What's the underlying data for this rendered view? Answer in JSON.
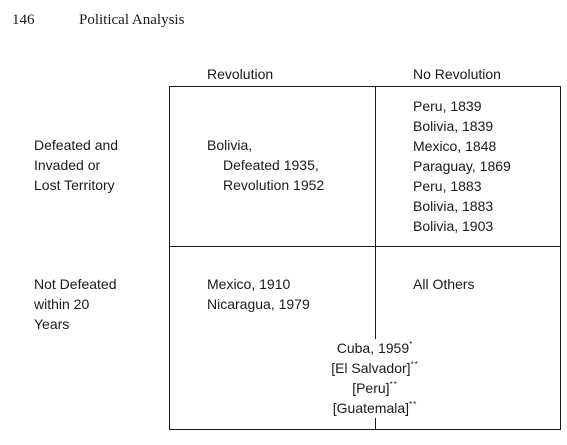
{
  "header": {
    "page_number": "146",
    "running_title": "Political Analysis"
  },
  "table": {
    "col_headers": [
      "Revolution",
      "No Revolution"
    ],
    "row_headers": [
      [
        "Defeated and",
        "Invaded or",
        "Lost Territory"
      ],
      [
        "Not Defeated",
        "within 20",
        "Years"
      ]
    ],
    "cell_defeated_revolution": [
      "Bolivia,",
      "Defeated 1935,",
      "Revolution 1952"
    ],
    "cell_defeated_no_revolution": [
      "Peru, 1839",
      "Bolivia, 1839",
      "Mexico, 1848",
      "Paraguay, 1869",
      "Peru, 1883",
      "Bolivia, 1883",
      "Bolivia, 1903"
    ],
    "cell_not_defeated_revolution": [
      "Mexico, 1910",
      "Nicaragua, 1979"
    ],
    "cell_not_defeated_no_revolution": [
      "All Others"
    ],
    "boundary_cases": [
      {
        "text": "Cuba, 1959",
        "mark": "*"
      },
      {
        "text": "[El Salvador]",
        "mark": "**"
      },
      {
        "text": "[Peru]",
        "mark": "**"
      },
      {
        "text": "[Guatemala]",
        "mark": "**"
      }
    ]
  }
}
